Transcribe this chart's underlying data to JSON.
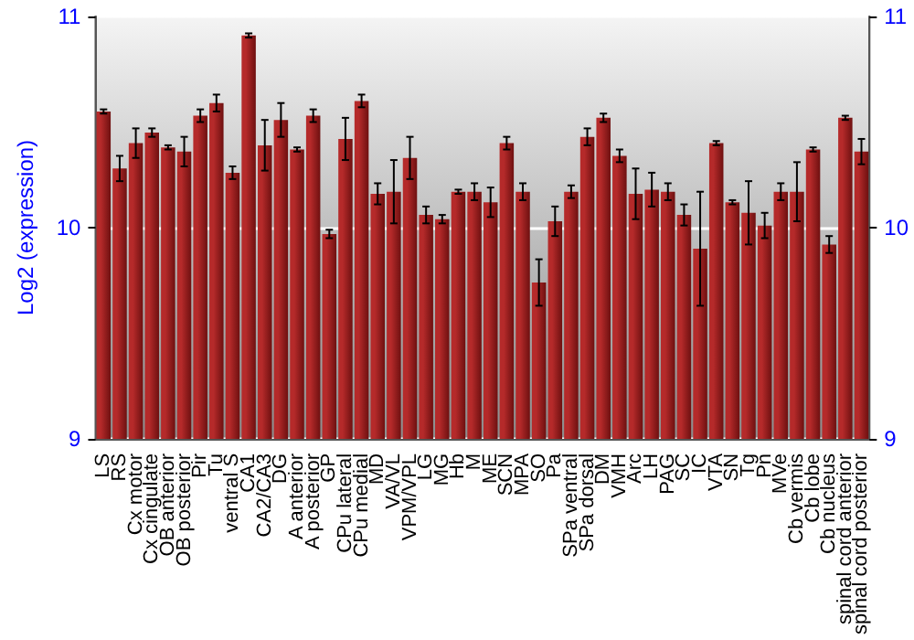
{
  "chart_data": {
    "type": "bar",
    "ylabel": "Log2 (expression)",
    "categories": [
      "LS",
      "RS",
      "Cx motor",
      "Cx cingulate",
      "OB anterior",
      "OB posterior",
      "Pir",
      "Tu",
      "ventral S",
      "CA1",
      "CA2/CA3",
      "DG",
      "A anterior",
      "A posterior",
      "GP",
      "CPu lateral",
      "CPu medial",
      "MD",
      "VA/VL",
      "VPM/VPL",
      "LG",
      "MG",
      "Hb",
      "M",
      "ME",
      "SCN",
      "MPA",
      "SO",
      "Pa",
      "SPa ventral",
      "SPa dorsal",
      "DM",
      "VMH",
      "Arc",
      "LH",
      "PAG",
      "SC",
      "IC",
      "VTA",
      "SN",
      "Tg",
      "Pn",
      "MVe",
      "Cb vermis",
      "Cb lobe",
      "Cb nucleus",
      "spinal cord anterior",
      "spinal cord posterior"
    ],
    "values": [
      10.55,
      10.28,
      10.4,
      10.45,
      10.38,
      10.36,
      10.53,
      10.59,
      10.26,
      10.91,
      10.39,
      10.51,
      10.37,
      10.53,
      9.97,
      10.42,
      10.6,
      10.16,
      10.17,
      10.33,
      10.06,
      10.04,
      10.17,
      10.17,
      10.12,
      10.4,
      10.17,
      9.74,
      10.03,
      10.17,
      10.43,
      10.52,
      10.34,
      10.16,
      10.18,
      10.17,
      10.06,
      9.9,
      10.4,
      10.12,
      10.07,
      10.01,
      10.17,
      10.17,
      10.37,
      9.92,
      10.52,
      10.36
    ],
    "errors": [
      0.01,
      0.06,
      0.07,
      0.02,
      0.01,
      0.07,
      0.03,
      0.04,
      0.03,
      0.01,
      0.12,
      0.08,
      0.01,
      0.03,
      0.02,
      0.1,
      0.03,
      0.05,
      0.15,
      0.1,
      0.04,
      0.02,
      0.01,
      0.04,
      0.07,
      0.03,
      0.04,
      0.11,
      0.07,
      0.03,
      0.04,
      0.02,
      0.03,
      0.12,
      0.08,
      0.04,
      0.05,
      0.27,
      0.01,
      0.01,
      0.15,
      0.06,
      0.04,
      0.14,
      0.01,
      0.04,
      0.01,
      0.06
    ],
    "color": "#b52a2a",
    "ylim": [
      9,
      11
    ],
    "yticks": [
      9,
      10,
      11
    ],
    "y2lim": [
      9,
      11
    ],
    "y2ticks": [
      9,
      10,
      11
    ],
    "grid": "y"
  }
}
